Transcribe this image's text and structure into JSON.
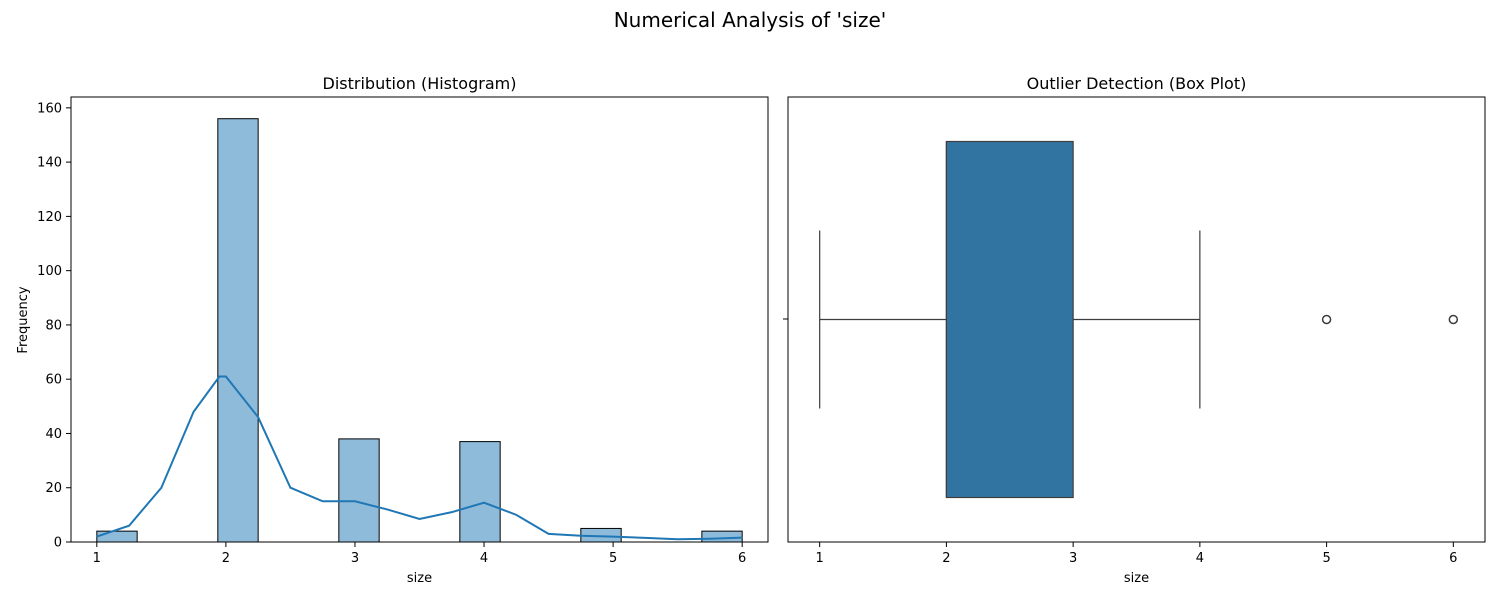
{
  "figure_title": "Numerical Analysis of 'size'",
  "chart_data": [
    {
      "type": "bar",
      "title": "Distribution (Histogram)",
      "xlabel": "size",
      "ylabel": "Frequency",
      "xlim": [
        0.8,
        6.2
      ],
      "ylim": [
        0,
        164
      ],
      "xticks": [
        1,
        2,
        3,
        4,
        5,
        6
      ],
      "yticks": [
        0,
        20,
        40,
        60,
        80,
        100,
        120,
        140,
        160
      ],
      "bar_color": "#8fbbdb",
      "edge_color": "#000000",
      "bins": [
        {
          "x0": 1.0,
          "x1": 1.3125,
          "count": 4
        },
        {
          "x0": 1.9375,
          "x1": 2.25,
          "count": 156
        },
        {
          "x0": 2.875,
          "x1": 3.1875,
          "count": 38
        },
        {
          "x0": 3.8125,
          "x1": 4.125,
          "count": 37
        },
        {
          "x0": 4.75,
          "x1": 5.0625,
          "count": 5
        },
        {
          "x0": 5.6875,
          "x1": 6.0,
          "count": 4
        }
      ],
      "kde": {
        "name": "KDE",
        "color": "#1f77b4",
        "x": [
          1.0,
          1.25,
          1.5,
          1.75,
          1.95,
          2.0,
          2.25,
          2.5,
          2.75,
          3.0,
          3.25,
          3.5,
          3.75,
          4.0,
          4.25,
          4.5,
          4.75,
          5.0,
          5.25,
          5.5,
          5.75,
          6.0
        ],
        "y": [
          2,
          6,
          20,
          48,
          61,
          61,
          46,
          20,
          15,
          15,
          12,
          8.5,
          11,
          14.5,
          10,
          3,
          2.3,
          2,
          1.5,
          1,
          1.2,
          1.6
        ]
      }
    },
    {
      "type": "box",
      "title": "Outlier Detection (Box Plot)",
      "xlabel": "size",
      "xlim": [
        0.75,
        6.25
      ],
      "xticks": [
        1,
        2,
        3,
        4,
        5,
        6
      ],
      "box_color": "#3274a1",
      "line_color": "#3d3d3d",
      "whisker_low": 1,
      "q1": 2,
      "median": 2,
      "q3": 3,
      "whisker_high": 4,
      "outliers": [
        5,
        6
      ]
    }
  ]
}
